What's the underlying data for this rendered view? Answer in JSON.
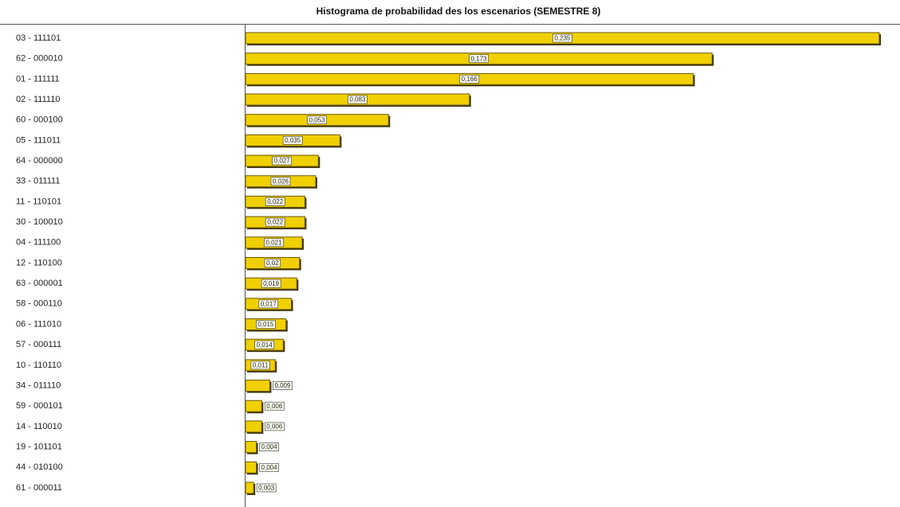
{
  "chart_data": {
    "type": "bar",
    "orientation": "horizontal",
    "title": "Histograma de probabilidad des los escenarios (SEMESTRE 8)",
    "color": "#f0d000",
    "categories": [
      "03 - 111101",
      "62 - 000010",
      "01 - 111111",
      "02 - 111110",
      "60 - 000100",
      "05 - 111011",
      "64 - 000000",
      "33 - 011111",
      "11 - 110101",
      "30 - 100010",
      "04 - 111100",
      "12 - 110100",
      "63 - 000001",
      "58 - 000110",
      "06 - 111010",
      "57 - 000111",
      "10 - 110110",
      "34 - 011110",
      "59 - 000101",
      "14 - 110010",
      "19 - 101101",
      "44 - 010100",
      "61 - 000011"
    ],
    "values": [
      0.235,
      0.173,
      0.166,
      0.083,
      0.053,
      0.035,
      0.027,
      0.026,
      0.022,
      0.022,
      0.021,
      0.02,
      0.019,
      0.017,
      0.015,
      0.014,
      0.011,
      0.009,
      0.006,
      0.006,
      0.004,
      0.004,
      0.003
    ],
    "value_labels": [
      "0,235",
      "0,173",
      "0,166",
      "0,083",
      "0,053",
      "0,035",
      "0,027",
      "0,026",
      "0,022",
      "0,022",
      "0,021",
      "0,02",
      "0,019",
      "0,017",
      "0,015",
      "0,014",
      "0,011",
      "0,009",
      "0,006",
      "0,006",
      "0,004",
      "0,004",
      "0,003"
    ]
  }
}
